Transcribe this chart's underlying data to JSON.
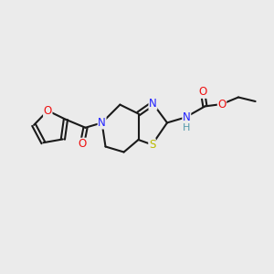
{
  "background_color": "#ebebeb",
  "bond_color": "#1a1a1a",
  "atom_colors": {
    "N": "#2020ff",
    "O": "#ee1111",
    "S": "#bbbb00",
    "H": "#5599aa",
    "C": "#1a1a1a"
  },
  "figsize": [
    3.0,
    3.0
  ],
  "dpi": 100
}
